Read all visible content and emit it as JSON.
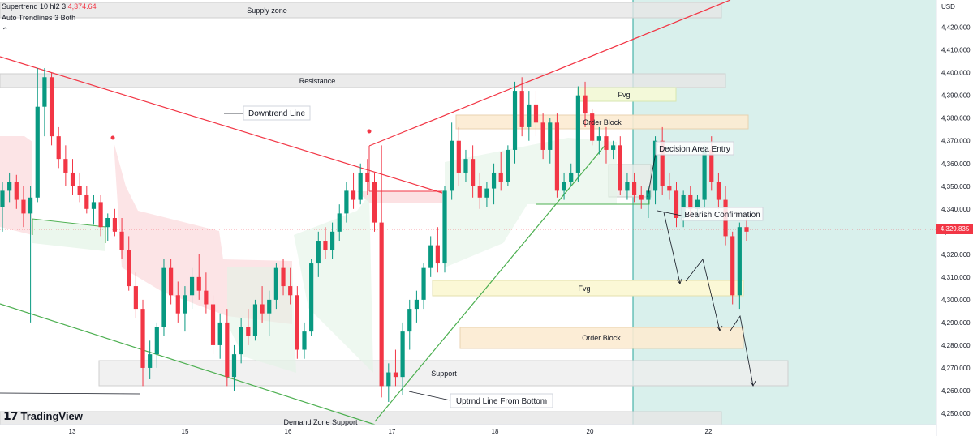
{
  "legend": {
    "indicator1_name": "Supertrend",
    "indicator1_params": "10 hl2 3",
    "indicator1_value": "4,374.64",
    "indicator2_name": "Auto Trendlines",
    "indicator2_params": "3 Both"
  },
  "currency": "USD",
  "current_price": "4,329.835",
  "watermark": "TradingView",
  "colors": {
    "up": "#089981",
    "down": "#f23645",
    "support_line": "#4caf50",
    "resistance_line": "#f23645",
    "highlight": "#b2dfdb"
  },
  "chart_data": {
    "type": "candlestick",
    "y_axis": {
      "unit": "USD",
      "range": [
        4245,
        4432
      ],
      "ticks": [
        "4,420.000",
        "4,410.000",
        "4,400.000",
        "4,390.000",
        "4,380.000",
        "4,370.000",
        "4,360.000",
        "4,350.000",
        "4,340.000",
        "4,330.000",
        "4,320.000",
        "4,310.000",
        "4,300.000",
        "4,290.000",
        "4,280.000",
        "4,270.000",
        "4,260.000",
        "4,250.000"
      ]
    },
    "x_axis": {
      "ticks": [
        "13",
        "15",
        "16",
        "17",
        "18",
        "20",
        "22"
      ]
    },
    "candles": [
      [
        4341,
        4352,
        4330,
        4348
      ],
      [
        4348,
        4356,
        4343,
        4352
      ],
      [
        4352,
        4355,
        4340,
        4344
      ],
      [
        4344,
        4350,
        4332,
        4338
      ],
      [
        4338,
        4350,
        4290,
        4345
      ],
      [
        4345,
        4402,
        4343,
        4385
      ],
      [
        4385,
        4402,
        4372,
        4398
      ],
      [
        4398,
        4400,
        4368,
        4372
      ],
      [
        4372,
        4376,
        4358,
        4362
      ],
      [
        4362,
        4368,
        4350,
        4356
      ],
      [
        4356,
        4362,
        4346,
        4350
      ],
      [
        4350,
        4356,
        4343,
        4346
      ],
      [
        4346,
        4350,
        4338,
        4340
      ],
      [
        4340,
        4346,
        4333,
        4343
      ],
      [
        4343,
        4346,
        4328,
        4332
      ],
      [
        4332,
        4338,
        4326,
        4336
      ],
      [
        4336,
        4340,
        4328,
        4330
      ],
      [
        4330,
        4336,
        4318,
        4322
      ],
      [
        4322,
        4328,
        4304,
        4306
      ],
      [
        4306,
        4312,
        4292,
        4296
      ],
      [
        4296,
        4300,
        4262,
        4270
      ],
      [
        4270,
        4282,
        4265,
        4276
      ],
      [
        4276,
        4290,
        4270,
        4288
      ],
      [
        4288,
        4318,
        4284,
        4314
      ],
      [
        4314,
        4318,
        4298,
        4302
      ],
      [
        4302,
        4308,
        4290,
        4294
      ],
      [
        4294,
        4306,
        4286,
        4302
      ],
      [
        4302,
        4314,
        4296,
        4310
      ],
      [
        4310,
        4320,
        4300,
        4304
      ],
      [
        4304,
        4312,
        4294,
        4298
      ],
      [
        4298,
        4302,
        4276,
        4280
      ],
      [
        4280,
        4294,
        4274,
        4290
      ],
      [
        4290,
        4296,
        4262,
        4266
      ],
      [
        4266,
        4280,
        4260,
        4276
      ],
      [
        4276,
        4292,
        4272,
        4288
      ],
      [
        4288,
        4296,
        4280,
        4284
      ],
      [
        4284,
        4300,
        4282,
        4298
      ],
      [
        4298,
        4306,
        4290,
        4294
      ],
      [
        4294,
        4304,
        4284,
        4300
      ],
      [
        4300,
        4316,
        4296,
        4314
      ],
      [
        4314,
        4318,
        4302,
        4306
      ],
      [
        4306,
        4314,
        4298,
        4302
      ],
      [
        4302,
        4306,
        4274,
        4278
      ],
      [
        4278,
        4290,
        4274,
        4286
      ],
      [
        4286,
        4318,
        4284,
        4316
      ],
      [
        4316,
        4330,
        4310,
        4326
      ],
      [
        4326,
        4332,
        4318,
        4322
      ],
      [
        4322,
        4334,
        4318,
        4330
      ],
      [
        4330,
        4342,
        4326,
        4338
      ],
      [
        4338,
        4352,
        4334,
        4348
      ],
      [
        4348,
        4356,
        4340,
        4344
      ],
      [
        4344,
        4360,
        4342,
        4356
      ],
      [
        4356,
        4362,
        4346,
        4352
      ],
      [
        4352,
        4356,
        4330,
        4334
      ],
      [
        4334,
        4368,
        4257,
        4262
      ],
      [
        4262,
        4272,
        4255,
        4268
      ],
      [
        4268,
        4278,
        4262,
        4266
      ],
      [
        4266,
        4290,
        4258,
        4286
      ],
      [
        4286,
        4300,
        4278,
        4296
      ],
      [
        4296,
        4304,
        4290,
        4300
      ],
      [
        4300,
        4316,
        4296,
        4314
      ],
      [
        4314,
        4328,
        4310,
        4324
      ],
      [
        4324,
        4332,
        4312,
        4316
      ],
      [
        4316,
        4350,
        4312,
        4348
      ],
      [
        4348,
        4378,
        4344,
        4370
      ],
      [
        4370,
        4376,
        4350,
        4356
      ],
      [
        4356,
        4366,
        4352,
        4362
      ],
      [
        4362,
        4368,
        4345,
        4350
      ],
      [
        4350,
        4356,
        4340,
        4345
      ],
      [
        4345,
        4352,
        4341,
        4349
      ],
      [
        4349,
        4360,
        4342,
        4356
      ],
      [
        4356,
        4365,
        4348,
        4352
      ],
      [
        4352,
        4368,
        4350,
        4366
      ],
      [
        4366,
        4396,
        4360,
        4392
      ],
      [
        4392,
        4398,
        4372,
        4376
      ],
      [
        4376,
        4392,
        4370,
        4386
      ],
      [
        4386,
        4392,
        4372,
        4378
      ],
      [
        4378,
        4382,
        4362,
        4366
      ],
      [
        4366,
        4380,
        4360,
        4378
      ],
      [
        4378,
        4382,
        4345,
        4348
      ],
      [
        4348,
        4356,
        4344,
        4352
      ],
      [
        4352,
        4360,
        4350,
        4356
      ],
      [
        4356,
        4394,
        4352,
        4390
      ],
      [
        4390,
        4396,
        4376,
        4382
      ],
      [
        4382,
        4384,
        4368,
        4370
      ],
      [
        4370,
        4376,
        4364,
        4372
      ],
      [
        4372,
        4376,
        4360,
        4366
      ],
      [
        4366,
        4370,
        4362,
        4368
      ],
      [
        4368,
        4372,
        4346,
        4348
      ],
      [
        4348,
        4356,
        4344,
        4352
      ],
      [
        4352,
        4356,
        4343,
        4346
      ],
      [
        4346,
        4350,
        4340,
        4344
      ],
      [
        4344,
        4350,
        4336,
        4348
      ],
      [
        4348,
        4372,
        4342,
        4370
      ],
      [
        4370,
        4376,
        4346,
        4350
      ],
      [
        4350,
        4356,
        4344,
        4348
      ],
      [
        4348,
        4352,
        4332,
        4336
      ],
      [
        4336,
        4348,
        4332,
        4346
      ],
      [
        4346,
        4350,
        4336,
        4340
      ],
      [
        4340,
        4346,
        4336,
        4344
      ],
      [
        4344,
        4368,
        4340,
        4366
      ],
      [
        4366,
        4372,
        4348,
        4352
      ],
      [
        4352,
        4356,
        4340,
        4344
      ],
      [
        4344,
        4350,
        4324,
        4328
      ],
      [
        4328,
        4330,
        4298,
        4302
      ],
      [
        4302,
        4334,
        4296,
        4332
      ],
      [
        4332,
        4336,
        4326,
        4330
      ]
    ]
  },
  "annotations": {
    "supply_zone": "Supply zone",
    "resistance": "Resistance",
    "downtrend_line": "Downtrend Line",
    "fvg_top": "Fvg",
    "order_block_top": "Order Block",
    "decision_area": "Decision Area Entry",
    "bearish_confirmation": "Bearish Confirmation",
    "fvg_mid": "Fvg",
    "order_block_bottom": "Order Block",
    "support": "Support",
    "uptrend_line": "Uptrnd Line From Bottom",
    "demand_zone": "Demand Zone Support"
  }
}
